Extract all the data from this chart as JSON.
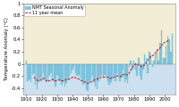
{
  "title": "",
  "ylabel": "Temperature Anomaly (°C)",
  "xlabel": "",
  "years": [
    1910,
    1911,
    1912,
    1913,
    1914,
    1915,
    1916,
    1917,
    1918,
    1919,
    1920,
    1921,
    1922,
    1923,
    1924,
    1925,
    1926,
    1927,
    1928,
    1929,
    1930,
    1931,
    1932,
    1933,
    1934,
    1935,
    1936,
    1937,
    1938,
    1939,
    1940,
    1941,
    1942,
    1943,
    1944,
    1945,
    1946,
    1947,
    1948,
    1949,
    1950,
    1951,
    1952,
    1953,
    1954,
    1955,
    1956,
    1957,
    1958,
    1959,
    1960,
    1961,
    1962,
    1963,
    1964,
    1965,
    1966,
    1967,
    1968,
    1969,
    1970,
    1971,
    1972,
    1973,
    1974,
    1975,
    1976,
    1977,
    1978,
    1979,
    1980,
    1981,
    1982,
    1983,
    1984,
    1985,
    1986,
    1987,
    1988,
    1989,
    1990,
    1991,
    1992,
    1993,
    1994,
    1995,
    1996,
    1997,
    1998,
    1999,
    2000,
    2001,
    2002,
    2003,
    2004,
    2005
  ],
  "anomalies": [
    0.05,
    -0.28,
    -0.25,
    -0.3,
    -0.18,
    -0.15,
    -0.35,
    -0.42,
    -0.3,
    -0.22,
    -0.28,
    -0.15,
    -0.25,
    -0.3,
    -0.28,
    -0.2,
    -0.15,
    -0.25,
    -0.3,
    -0.38,
    -0.18,
    -0.22,
    -0.28,
    -0.35,
    -0.3,
    -0.38,
    -0.32,
    -0.25,
    -0.2,
    -0.15,
    -0.1,
    -0.05,
    -0.15,
    -0.2,
    -0.18,
    -0.22,
    -0.28,
    -0.35,
    -0.3,
    -0.42,
    -0.45,
    -0.3,
    -0.25,
    -0.2,
    -0.3,
    -0.38,
    -0.42,
    -0.28,
    -0.2,
    -0.18,
    -0.22,
    -0.18,
    -0.2,
    -0.28,
    -0.35,
    -0.3,
    -0.25,
    -0.2,
    -0.28,
    -0.15,
    -0.18,
    -0.28,
    -0.22,
    -0.1,
    -0.3,
    -0.25,
    -0.32,
    -0.05,
    0.05,
    -0.1,
    0.05,
    -0.1,
    -0.2,
    0.1,
    -0.2,
    -0.25,
    -0.1,
    0.15,
    0.1,
    -0.15,
    0.2,
    0.15,
    -0.05,
    0.05,
    0.15,
    0.25,
    0.05,
    0.35,
    0.55,
    0.1,
    0.1,
    0.3,
    0.45,
    0.4,
    0.2,
    0.5
  ],
  "smooth": [
    null,
    null,
    null,
    null,
    null,
    -0.22,
    -0.25,
    -0.27,
    -0.28,
    -0.27,
    -0.25,
    -0.24,
    -0.26,
    -0.28,
    -0.29,
    -0.28,
    -0.27,
    -0.26,
    -0.27,
    -0.28,
    -0.27,
    -0.26,
    -0.27,
    -0.28,
    -0.28,
    -0.27,
    -0.26,
    -0.26,
    -0.25,
    -0.24,
    -0.22,
    -0.22,
    -0.23,
    -0.24,
    -0.25,
    -0.26,
    -0.28,
    -0.29,
    -0.3,
    -0.31,
    -0.32,
    -0.31,
    -0.3,
    -0.28,
    -0.27,
    -0.26,
    -0.25,
    -0.24,
    -0.23,
    -0.22,
    -0.22,
    -0.22,
    -0.22,
    -0.22,
    -0.23,
    -0.24,
    -0.23,
    -0.22,
    -0.21,
    -0.2,
    -0.2,
    -0.21,
    -0.2,
    -0.18,
    -0.17,
    -0.18,
    -0.18,
    -0.15,
    -0.1,
    -0.06,
    -0.03,
    0.0,
    0.0,
    -0.02,
    -0.03,
    -0.05,
    -0.04,
    -0.02,
    0.02,
    0.06,
    0.1,
    0.12,
    0.13,
    0.15,
    0.18,
    0.22,
    0.24,
    0.26,
    0.3,
    0.34,
    0.35,
    0.36,
    0.38,
    0.4,
    null,
    null
  ],
  "bar_color": "#82C8E0",
  "bar_edge_color": "#60AECE",
  "line_color": "#CC0000",
  "bg_above": "#F2EDD4",
  "bg_below": "#CCE0EF",
  "ylim": [
    -0.5,
    1.0
  ],
  "xlim": [
    1908,
    2007
  ],
  "xticks": [
    1910,
    1920,
    1930,
    1940,
    1950,
    1960,
    1970,
    1980,
    1990,
    2000
  ],
  "yticks": [
    -0.4,
    -0.2,
    0.0,
    0.2,
    0.4,
    0.6,
    0.8,
    1.0
  ],
  "ytick_labels": [
    "-0.4",
    "-0.2",
    "0",
    "0.2",
    "0.4",
    "0.6",
    "0.8",
    "1"
  ],
  "legend_bar_label": "NMT Seasonal Anomaly",
  "legend_line_label": "11 year mean",
  "ylabel_fontsize": 3.8,
  "tick_fontsize": 3.8,
  "legend_fontsize": 3.5
}
